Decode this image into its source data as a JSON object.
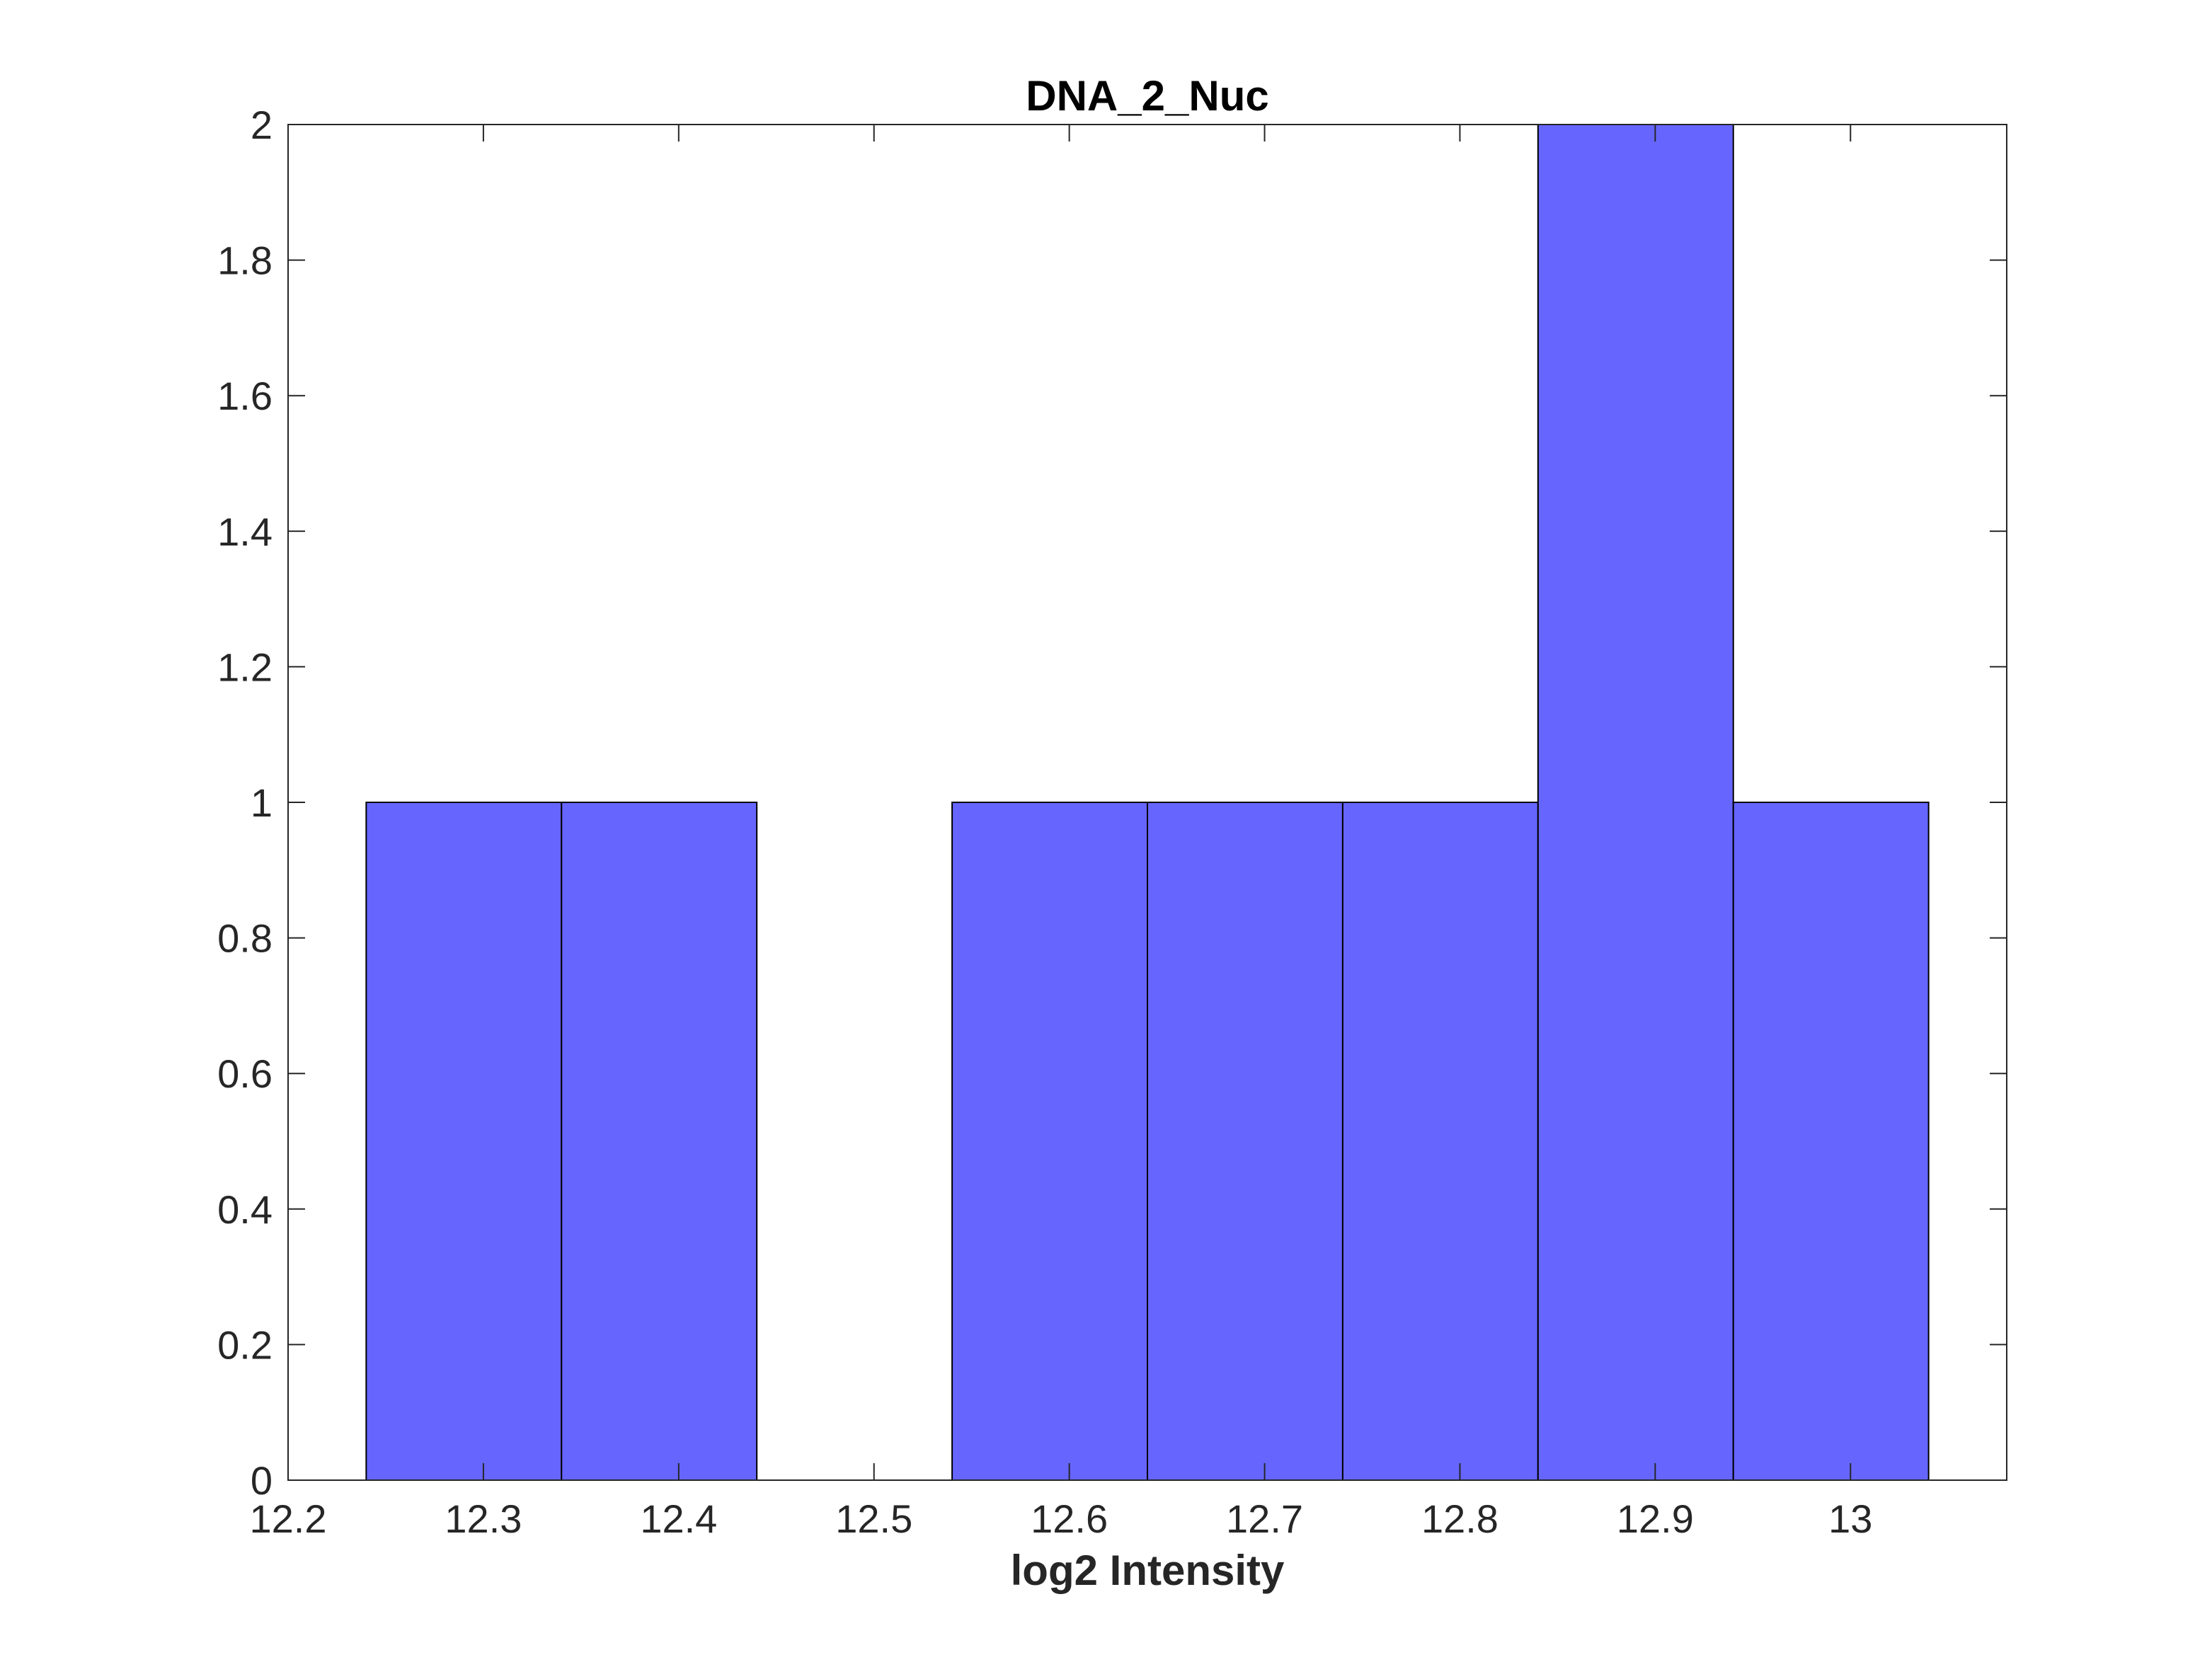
{
  "chart_data": {
    "type": "bar",
    "title": "DNA_2_Nuc",
    "xlabel": "log2 Intensity",
    "ylabel": "",
    "bin_edges": [
      12.24,
      12.34,
      12.44,
      12.54,
      12.64,
      12.74,
      12.84,
      12.94,
      13.04
    ],
    "values": [
      1,
      1,
      0,
      1,
      1,
      1,
      2,
      1
    ],
    "xlim": [
      12.2,
      13.08
    ],
    "ylim": [
      0,
      2
    ],
    "xticks": [
      12.2,
      12.3,
      12.4,
      12.5,
      12.6,
      12.7,
      12.8,
      12.9,
      13
    ],
    "xtick_labels": [
      "12.2",
      "12.3",
      "12.4",
      "12.5",
      "12.6",
      "12.7",
      "12.8",
      "12.9",
      "13"
    ],
    "yticks": [
      0,
      0.2,
      0.4,
      0.6,
      0.8,
      1,
      1.2,
      1.4,
      1.6,
      1.8,
      2
    ],
    "ytick_labels": [
      "0",
      "0.2",
      "0.4",
      "0.6",
      "0.8",
      "1",
      "1.2",
      "1.4",
      "1.6",
      "1.8",
      "2"
    ],
    "grid": false,
    "bar_color": "#6666ff",
    "bar_edge_color": "#000000",
    "axis_color": "#262626"
  }
}
